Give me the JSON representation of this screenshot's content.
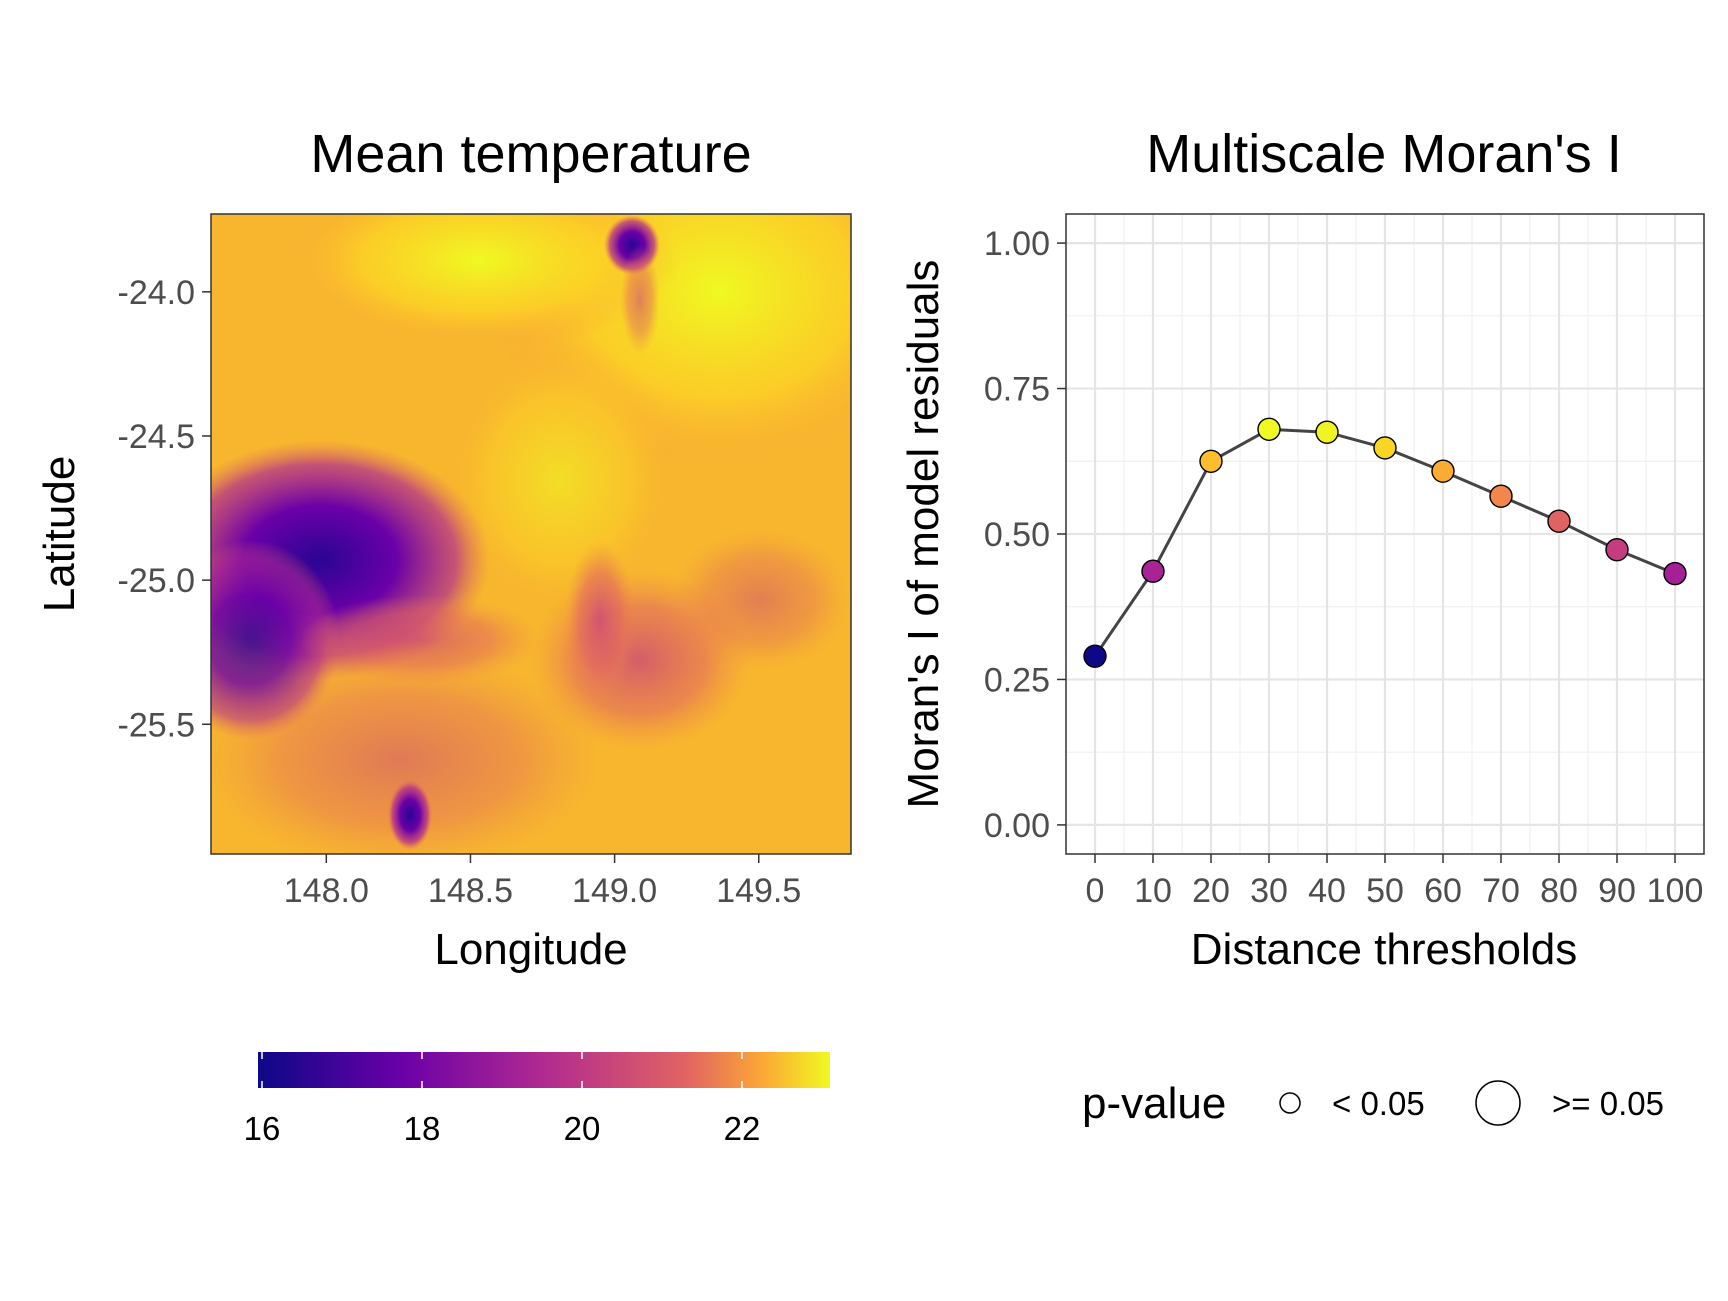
{
  "chart_data": [
    {
      "type": "heatmap",
      "title": "Mean temperature",
      "xlabel": "Longitude",
      "ylabel": "Latitude",
      "xlim": [
        147.6,
        149.82
      ],
      "ylim": [
        -25.95,
        -23.73
      ],
      "x_ticks": [
        148.0,
        148.5,
        149.0,
        149.5
      ],
      "x_tick_labels": [
        "148.0",
        "148.5",
        "149.0",
        "149.5"
      ],
      "y_ticks": [
        -24.0,
        -24.5,
        -25.0,
        -25.5
      ],
      "y_tick_labels": [
        "-24.0",
        "-24.5",
        "-25.0",
        "-25.5"
      ],
      "colorbar": {
        "palette": "plasma",
        "range": [
          15.95,
          23.1
        ],
        "ticks": [
          16,
          18,
          20,
          22
        ],
        "tick_labels": [
          "16",
          "18",
          "20",
          "22"
        ],
        "position": "bottom"
      },
      "low_region_colors": [
        "#0d0887",
        "#6a00a8"
      ],
      "high_region_colors": [
        "#fca636",
        "#f0f921"
      ]
    },
    {
      "type": "line",
      "title": "Multiscale Moran's I",
      "xlabel": "Distance thresholds",
      "ylabel": "Moran's I of model residuals",
      "x": [
        0,
        10,
        20,
        30,
        40,
        50,
        60,
        70,
        80,
        90,
        100
      ],
      "x_tick_labels": [
        "0",
        "10",
        "20",
        "30",
        "40",
        "50",
        "60",
        "70",
        "80",
        "90",
        "100"
      ],
      "y": [
        0.29,
        0.436,
        0.625,
        0.68,
        0.675,
        0.648,
        0.608,
        0.565,
        0.522,
        0.473,
        0.432
      ],
      "xlim": [
        -5,
        105
      ],
      "ylim": [
        -0.05,
        1.05
      ],
      "y_ticks": [
        0.0,
        0.25,
        0.5,
        0.75,
        1.0
      ],
      "y_tick_labels": [
        "0.00",
        "0.25",
        "0.50",
        "0.75",
        "1.00"
      ],
      "grid": true,
      "point_color_by": "y",
      "palette": "plasma",
      "line_color": "#444444",
      "legend": {
        "title": "p-value",
        "position": "bottom",
        "entries": [
          {
            "label": "< 0.05",
            "size": "small"
          },
          {
            "label": ">= 0.05",
            "size": "large"
          }
        ]
      }
    }
  ]
}
